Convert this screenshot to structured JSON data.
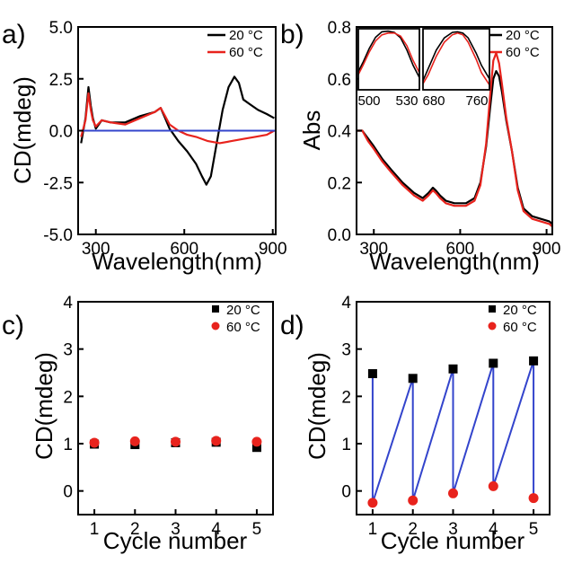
{
  "chart_data": [
    {
      "panel_label": "a)",
      "type": "line",
      "xlabel": "Wavelength(nm)",
      "ylabel": "CD(mdeg)",
      "xlim": [
        240,
        910
      ],
      "ylim": [
        -5.0,
        5.0
      ],
      "xticks": [
        300,
        600,
        900
      ],
      "xtick_labels": [
        "300",
        "600",
        "900"
      ],
      "yticks": [
        -5.0,
        -2.5,
        0.0,
        2.5,
        5.0
      ],
      "ytick_labels": [
        "-5.0",
        "-2.5",
        "0.0",
        "2.5",
        "5.0"
      ],
      "legend_position": "top-right",
      "series": [
        {
          "name": "20 °C",
          "color": "#000000",
          "x": [
            250,
            265,
            275,
            283,
            290,
            300,
            320,
            350,
            400,
            450,
            500,
            520,
            535,
            550,
            580,
            610,
            640,
            660,
            675,
            690,
            710,
            730,
            750,
            770,
            785,
            800,
            820,
            850,
            880,
            905
          ],
          "y": [
            -0.6,
            0.6,
            2.1,
            1.2,
            0.6,
            0.1,
            0.5,
            0.4,
            0.4,
            0.7,
            0.9,
            1.1,
            0.6,
            0.1,
            -0.5,
            -1.0,
            -1.6,
            -2.2,
            -2.6,
            -2.2,
            -0.6,
            1.0,
            2.1,
            2.6,
            2.3,
            1.5,
            1.3,
            1.0,
            0.8,
            0.6
          ]
        },
        {
          "name": "60 °C",
          "color": "#e8231d",
          "x": [
            250,
            265,
            275,
            283,
            290,
            300,
            320,
            350,
            400,
            450,
            500,
            520,
            535,
            550,
            580,
            610,
            640,
            680,
            720,
            760,
            800,
            840,
            880,
            905
          ],
          "y": [
            -0.3,
            0.5,
            1.8,
            1.0,
            0.5,
            0.2,
            0.5,
            0.4,
            0.3,
            0.6,
            0.9,
            1.1,
            0.7,
            0.3,
            0.0,
            -0.2,
            -0.3,
            -0.5,
            -0.6,
            -0.5,
            -0.4,
            -0.3,
            -0.2,
            0.0
          ]
        },
        {
          "name": "",
          "color": "#3344cc",
          "x": [
            240,
            910
          ],
          "y": [
            0.0,
            0.0
          ]
        }
      ]
    },
    {
      "panel_label": "b)",
      "type": "line",
      "xlabel": "Wavelength(nm)",
      "ylabel": "Abs",
      "xlim": [
        240,
        920
      ],
      "ylim": [
        0.0,
        0.8
      ],
      "xticks": [
        300,
        600,
        900
      ],
      "xtick_labels": [
        "300",
        "600",
        "900"
      ],
      "yticks": [
        0.0,
        0.2,
        0.4,
        0.6,
        0.8
      ],
      "ytick_labels": [
        "0.0",
        "0.2",
        "0.4",
        "0.6",
        "0.8"
      ],
      "legend_position": "top-right",
      "series": [
        {
          "name": "20 °C",
          "color": "#000000",
          "x": [
            240,
            260,
            280,
            300,
            330,
            360,
            400,
            440,
            470,
            490,
            505,
            515,
            530,
            550,
            580,
            620,
            650,
            670,
            690,
            705,
            715,
            725,
            735,
            745,
            760,
            780,
            800,
            820,
            850,
            880,
            910,
            920
          ],
          "y": [
            0.4,
            0.4,
            0.37,
            0.34,
            0.29,
            0.25,
            0.2,
            0.16,
            0.14,
            0.16,
            0.18,
            0.17,
            0.15,
            0.13,
            0.12,
            0.12,
            0.14,
            0.2,
            0.34,
            0.5,
            0.6,
            0.63,
            0.61,
            0.55,
            0.44,
            0.32,
            0.18,
            0.1,
            0.07,
            0.06,
            0.05,
            0.04
          ]
        },
        {
          "name": "60 °C",
          "color": "#e8231d",
          "x": [
            240,
            260,
            280,
            300,
            330,
            360,
            400,
            440,
            470,
            490,
            505,
            515,
            530,
            550,
            580,
            620,
            650,
            670,
            690,
            705,
            715,
            725,
            735,
            745,
            760,
            780,
            800,
            820,
            850,
            880,
            910,
            920
          ],
          "y": [
            0.4,
            0.4,
            0.36,
            0.33,
            0.28,
            0.24,
            0.19,
            0.15,
            0.13,
            0.15,
            0.17,
            0.16,
            0.14,
            0.12,
            0.11,
            0.11,
            0.13,
            0.19,
            0.35,
            0.55,
            0.67,
            0.7,
            0.66,
            0.58,
            0.45,
            0.32,
            0.17,
            0.09,
            0.06,
            0.05,
            0.04,
            0.03
          ]
        }
      ],
      "insets": [
        {
          "xlim": [
            493,
            532
          ],
          "ylim": [
            0.0,
            1.0
          ],
          "xtick_labels": [
            "500",
            "530"
          ],
          "series": [
            {
              "color": "#000000",
              "x": [
                493,
                496,
                500,
                504,
                508,
                512,
                516,
                520,
                524,
                528,
                532
              ],
              "y": [
                0.3,
                0.45,
                0.68,
                0.86,
                0.95,
                0.96,
                0.94,
                0.85,
                0.65,
                0.4,
                0.2
              ]
            },
            {
              "color": "#e8231d",
              "x": [
                493,
                496,
                500,
                504,
                508,
                512,
                516,
                520,
                524,
                528,
                532
              ],
              "y": [
                0.25,
                0.4,
                0.62,
                0.8,
                0.9,
                0.93,
                0.93,
                0.88,
                0.72,
                0.48,
                0.28
              ]
            }
          ]
        },
        {
          "xlim": [
            655,
            780
          ],
          "ylim": [
            0.0,
            1.0
          ],
          "xtick_labels": [
            "680",
            "760"
          ],
          "series": [
            {
              "color": "#000000",
              "x": [
                655,
                665,
                680,
                695,
                710,
                720,
                730,
                740,
                755,
                765,
                780
              ],
              "y": [
                0.15,
                0.35,
                0.65,
                0.85,
                0.94,
                0.95,
                0.93,
                0.85,
                0.6,
                0.4,
                0.18
              ]
            },
            {
              "color": "#e8231d",
              "x": [
                655,
                665,
                680,
                695,
                710,
                720,
                730,
                740,
                755,
                765,
                780
              ],
              "y": [
                0.1,
                0.25,
                0.55,
                0.78,
                0.9,
                0.93,
                0.9,
                0.78,
                0.5,
                0.28,
                0.08
              ]
            }
          ]
        }
      ]
    },
    {
      "panel_label": "c)",
      "type": "scatter",
      "xlabel": "Cycle number",
      "ylabel": "CD(mdeg)",
      "xlim": [
        0.6,
        5.4
      ],
      "ylim": [
        -0.5,
        4.0
      ],
      "xticks": [
        1,
        2,
        3,
        4,
        5
      ],
      "xtick_labels": [
        "1",
        "2",
        "3",
        "4",
        "5"
      ],
      "yticks": [
        0,
        1,
        2,
        3,
        4
      ],
      "ytick_labels": [
        "0",
        "1",
        "2",
        "3",
        "4"
      ],
      "legend_position": "top-right",
      "series": [
        {
          "name": "20 °C",
          "color": "#000000",
          "marker": "square",
          "x": [
            1,
            2,
            3,
            4,
            5
          ],
          "y": [
            0.99,
            0.98,
            1.02,
            1.03,
            0.92
          ]
        },
        {
          "name": "60 °C",
          "color": "#e8231d",
          "marker": "circle",
          "x": [
            1,
            2,
            3,
            4,
            5
          ],
          "y": [
            1.02,
            1.05,
            1.04,
            1.06,
            1.04
          ]
        }
      ]
    },
    {
      "panel_label": "d)",
      "type": "scatter",
      "xlabel": "Cycle number",
      "ylabel": "CD(mdeg)",
      "xlim": [
        0.6,
        5.4
      ],
      "ylim": [
        -0.5,
        4.0
      ],
      "xticks": [
        1,
        2,
        3,
        4,
        5
      ],
      "xtick_labels": [
        "1",
        "2",
        "3",
        "4",
        "5"
      ],
      "yticks": [
        0,
        1,
        2,
        3,
        4
      ],
      "ytick_labels": [
        "0",
        "1",
        "2",
        "3",
        "4"
      ],
      "legend_position": "top-right",
      "connector_color": "#3344cc",
      "series": [
        {
          "name": "20 °C",
          "color": "#000000",
          "marker": "square",
          "x": [
            1,
            2,
            3,
            4,
            5
          ],
          "y": [
            2.48,
            2.38,
            2.58,
            2.7,
            2.75
          ]
        },
        {
          "name": "60 °C",
          "color": "#e8231d",
          "marker": "circle",
          "x": [
            1,
            2,
            3,
            4,
            5
          ],
          "y": [
            -0.25,
            -0.2,
            -0.05,
            0.1,
            -0.15
          ]
        }
      ]
    }
  ]
}
